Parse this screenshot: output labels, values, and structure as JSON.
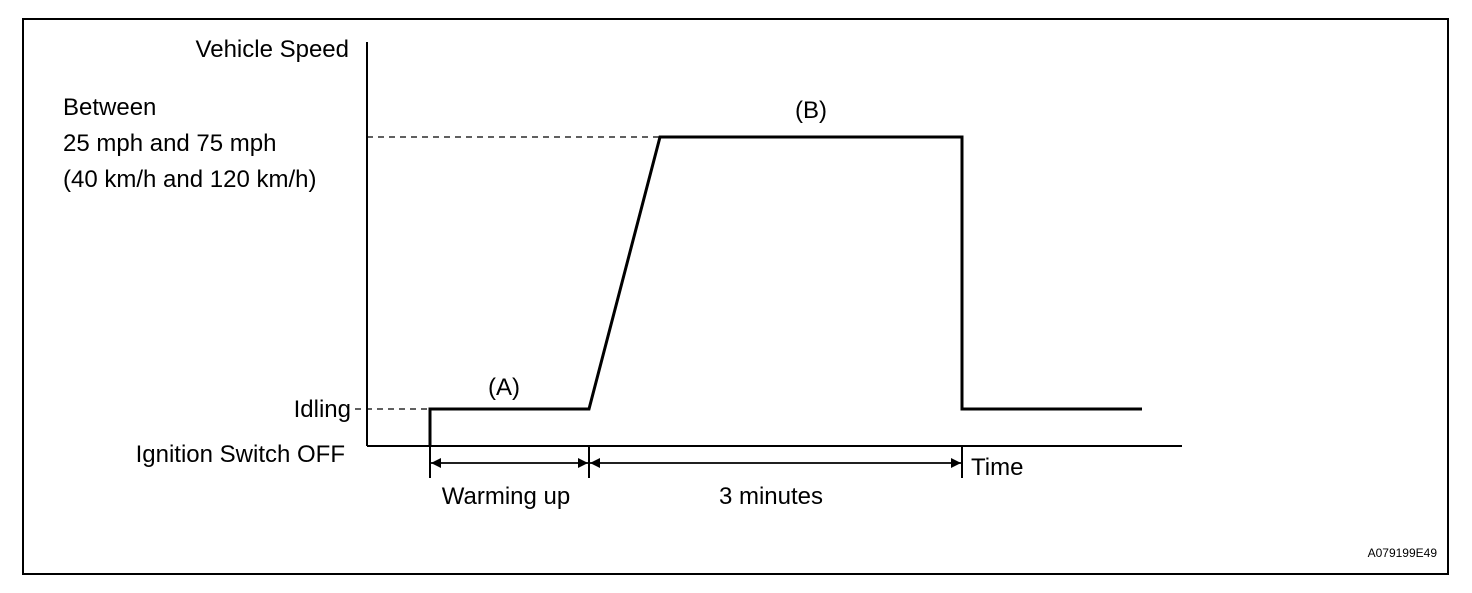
{
  "axes": {
    "y_label": "Vehicle Speed",
    "x_label": "Time"
  },
  "levels": {
    "speed_line1": "Between",
    "speed_line2": "25 mph and 75 mph",
    "speed_line3": "(40 km/h and 120 km/h)",
    "idling": "Idling",
    "ignition_off": "Ignition Switch OFF"
  },
  "phases": {
    "a": "(A)",
    "b": "(B)"
  },
  "durations": {
    "warming_up": "Warming up",
    "three_minutes": "3 minutes"
  },
  "figure_code": "A079199E49"
}
